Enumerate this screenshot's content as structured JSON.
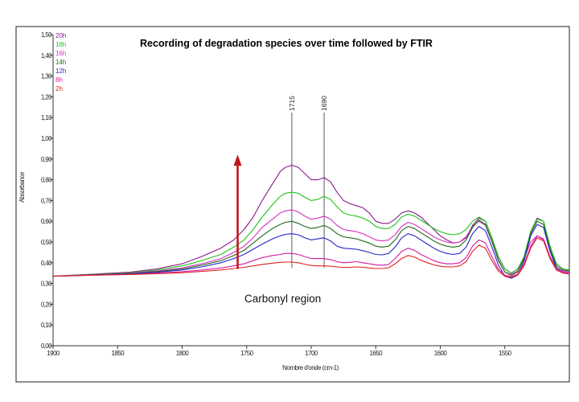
{
  "chart_data": {
    "type": "line",
    "title": "Recording of degradation species over time followed by FTIR",
    "xlabel": "Nombre d'onde (cm-1)",
    "ylabel": "Absorbance",
    "xlim": [
      1900,
      1500
    ],
    "ylim": [
      0.0,
      1.5
    ],
    "x_tick_labels": [
      "1900",
      "1850",
      "1800",
      "1750",
      "1700",
      "1650",
      "1600",
      "1550"
    ],
    "x_tick_values": [
      1900,
      1850,
      1800,
      1750,
      1700,
      1650,
      1600,
      1550
    ],
    "y_tick_labels": [
      "0,00",
      "0,10",
      "0,20",
      "0,30",
      "0,40",
      "0,50",
      "0,60",
      "0,70",
      "0,80",
      "0,90",
      "1,00",
      "1,10",
      "1,20",
      "1,30",
      "1,40",
      "1,50"
    ],
    "y_tick_values": [
      0.0,
      0.1,
      0.2,
      0.3,
      0.4,
      0.5,
      0.6,
      0.7,
      0.8,
      0.9,
      1.0,
      1.1,
      1.2,
      1.3,
      1.4,
      1.5
    ],
    "legend_position": "top-left",
    "annotations": {
      "region_label": "Carbonyl region",
      "peaks": [
        {
          "label": "1715",
          "x": 1715
        },
        {
          "label": "1690",
          "x": 1690
        }
      ],
      "arrow": {
        "x": 1757,
        "from": 0.37,
        "to": 0.91,
        "color": "#c0181c"
      }
    },
    "x": [
      1900,
      1870,
      1840,
      1820,
      1800,
      1785,
      1770,
      1760,
      1752,
      1745,
      1738,
      1730,
      1724,
      1720,
      1715,
      1710,
      1705,
      1700,
      1695,
      1690,
      1685,
      1680,
      1675,
      1670,
      1665,
      1660,
      1655,
      1650,
      1645,
      1640,
      1635,
      1630,
      1625,
      1620,
      1615,
      1610,
      1605,
      1600,
      1595,
      1590,
      1585,
      1580,
      1575,
      1570,
      1565,
      1560,
      1555,
      1550,
      1545,
      1540,
      1535,
      1530,
      1525,
      1520,
      1515,
      1510,
      1505,
      1500
    ],
    "series": [
      {
        "name": "20h",
        "color": "#8b1a8b",
        "y": [
          0.335,
          0.345,
          0.355,
          0.37,
          0.395,
          0.43,
          0.47,
          0.51,
          0.56,
          0.62,
          0.7,
          0.78,
          0.84,
          0.86,
          0.87,
          0.86,
          0.83,
          0.8,
          0.8,
          0.81,
          0.79,
          0.74,
          0.7,
          0.685,
          0.675,
          0.665,
          0.64,
          0.6,
          0.59,
          0.59,
          0.61,
          0.64,
          0.65,
          0.64,
          0.62,
          0.59,
          0.56,
          0.53,
          0.51,
          0.495,
          0.5,
          0.52,
          0.58,
          0.615,
          0.6,
          0.52,
          0.43,
          0.37,
          0.35,
          0.37,
          0.43,
          0.55,
          0.615,
          0.6,
          0.48,
          0.395,
          0.37,
          0.365
        ]
      },
      {
        "name": "18h",
        "color": "#22c41a",
        "y": [
          0.335,
          0.344,
          0.352,
          0.365,
          0.385,
          0.41,
          0.44,
          0.475,
          0.51,
          0.56,
          0.62,
          0.68,
          0.72,
          0.735,
          0.74,
          0.735,
          0.715,
          0.7,
          0.705,
          0.72,
          0.705,
          0.67,
          0.64,
          0.63,
          0.625,
          0.615,
          0.6,
          0.575,
          0.565,
          0.565,
          0.585,
          0.62,
          0.635,
          0.625,
          0.605,
          0.585,
          0.565,
          0.55,
          0.54,
          0.535,
          0.54,
          0.56,
          0.6,
          0.62,
          0.6,
          0.52,
          0.43,
          0.37,
          0.35,
          0.37,
          0.43,
          0.55,
          0.61,
          0.6,
          0.48,
          0.395,
          0.37,
          0.365
        ]
      },
      {
        "name": "16h",
        "color": "#d631c0",
        "y": [
          0.335,
          0.343,
          0.35,
          0.36,
          0.375,
          0.395,
          0.42,
          0.45,
          0.48,
          0.52,
          0.57,
          0.61,
          0.64,
          0.65,
          0.655,
          0.645,
          0.625,
          0.61,
          0.615,
          0.625,
          0.61,
          0.58,
          0.56,
          0.555,
          0.55,
          0.54,
          0.525,
          0.51,
          0.505,
          0.51,
          0.535,
          0.575,
          0.595,
          0.585,
          0.565,
          0.545,
          0.525,
          0.51,
          0.5,
          0.495,
          0.5,
          0.525,
          0.575,
          0.6,
          0.58,
          0.5,
          0.41,
          0.355,
          0.345,
          0.36,
          0.42,
          0.5,
          0.53,
          0.51,
          0.43,
          0.375,
          0.36,
          0.355
        ]
      },
      {
        "name": "14h",
        "color": "#1a6b1a",
        "y": [
          0.335,
          0.342,
          0.348,
          0.357,
          0.37,
          0.388,
          0.41,
          0.435,
          0.46,
          0.495,
          0.53,
          0.565,
          0.585,
          0.595,
          0.6,
          0.59,
          0.575,
          0.565,
          0.57,
          0.58,
          0.565,
          0.54,
          0.525,
          0.52,
          0.515,
          0.505,
          0.495,
          0.48,
          0.475,
          0.48,
          0.51,
          0.555,
          0.575,
          0.565,
          0.545,
          0.525,
          0.505,
          0.49,
          0.48,
          0.475,
          0.48,
          0.51,
          0.57,
          0.605,
          0.585,
          0.505,
          0.415,
          0.355,
          0.34,
          0.355,
          0.42,
          0.54,
          0.6,
          0.585,
          0.465,
          0.385,
          0.365,
          0.36
        ]
      },
      {
        "name": "12h",
        "color": "#2626c8",
        "y": [
          0.335,
          0.341,
          0.346,
          0.354,
          0.365,
          0.38,
          0.4,
          0.42,
          0.44,
          0.465,
          0.49,
          0.515,
          0.53,
          0.537,
          0.54,
          0.535,
          0.52,
          0.51,
          0.515,
          0.52,
          0.505,
          0.48,
          0.47,
          0.468,
          0.465,
          0.458,
          0.45,
          0.44,
          0.438,
          0.445,
          0.475,
          0.52,
          0.54,
          0.53,
          0.51,
          0.49,
          0.47,
          0.455,
          0.445,
          0.44,
          0.445,
          0.475,
          0.54,
          0.575,
          0.555,
          0.475,
          0.39,
          0.335,
          0.325,
          0.34,
          0.41,
          0.53,
          0.585,
          0.57,
          0.455,
          0.375,
          0.355,
          0.35
        ]
      },
      {
        "name": "8h",
        "color": "#d61aa0",
        "y": [
          0.335,
          0.34,
          0.344,
          0.35,
          0.357,
          0.365,
          0.375,
          0.385,
          0.395,
          0.41,
          0.425,
          0.435,
          0.44,
          0.445,
          0.445,
          0.44,
          0.43,
          0.42,
          0.42,
          0.42,
          0.415,
          0.405,
          0.4,
          0.402,
          0.405,
          0.4,
          0.395,
          0.39,
          0.388,
          0.392,
          0.42,
          0.455,
          0.47,
          0.46,
          0.44,
          0.425,
          0.41,
          0.4,
          0.395,
          0.395,
          0.4,
          0.425,
          0.48,
          0.51,
          0.495,
          0.43,
          0.37,
          0.34,
          0.335,
          0.345,
          0.395,
          0.48,
          0.53,
          0.515,
          0.43,
          0.37,
          0.355,
          0.35
        ]
      },
      {
        "name": "2h",
        "color": "#e02020",
        "y": [
          0.335,
          0.34,
          0.343,
          0.347,
          0.352,
          0.358,
          0.365,
          0.372,
          0.378,
          0.385,
          0.392,
          0.398,
          0.402,
          0.403,
          0.403,
          0.4,
          0.393,
          0.387,
          0.385,
          0.385,
          0.383,
          0.38,
          0.378,
          0.378,
          0.38,
          0.378,
          0.375,
          0.372,
          0.372,
          0.376,
          0.395,
          0.42,
          0.435,
          0.428,
          0.412,
          0.4,
          0.39,
          0.383,
          0.38,
          0.38,
          0.385,
          0.405,
          0.455,
          0.485,
          0.47,
          0.41,
          0.36,
          0.335,
          0.33,
          0.34,
          0.385,
          0.47,
          0.52,
          0.505,
          0.42,
          0.365,
          0.35,
          0.345
        ]
      }
    ]
  }
}
